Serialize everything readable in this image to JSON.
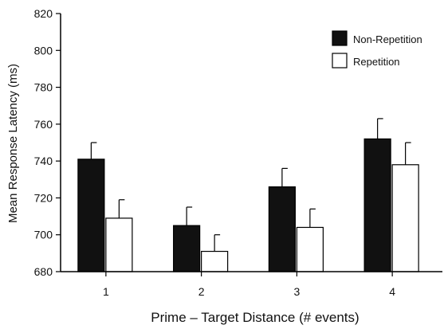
{
  "chart_data": {
    "type": "bar",
    "xlabel": "Prime – Target Distance (# events)",
    "ylabel": "Mean Response Latency  (ms)",
    "categories": [
      "1",
      "2",
      "3",
      "4"
    ],
    "ylim": [
      680,
      820
    ],
    "yticks": [
      680,
      700,
      720,
      740,
      760,
      780,
      800,
      820
    ],
    "grid": false,
    "legend_position": "top-right",
    "series": [
      {
        "name": "Non-Repetition",
        "color": "#111111",
        "values": [
          741,
          705,
          726,
          752
        ],
        "errors": [
          9,
          10,
          10,
          11
        ]
      },
      {
        "name": "Repetition",
        "color": "#ffffff",
        "values": [
          709,
          691,
          704,
          738
        ],
        "errors": [
          10,
          9,
          10,
          12
        ]
      }
    ]
  }
}
